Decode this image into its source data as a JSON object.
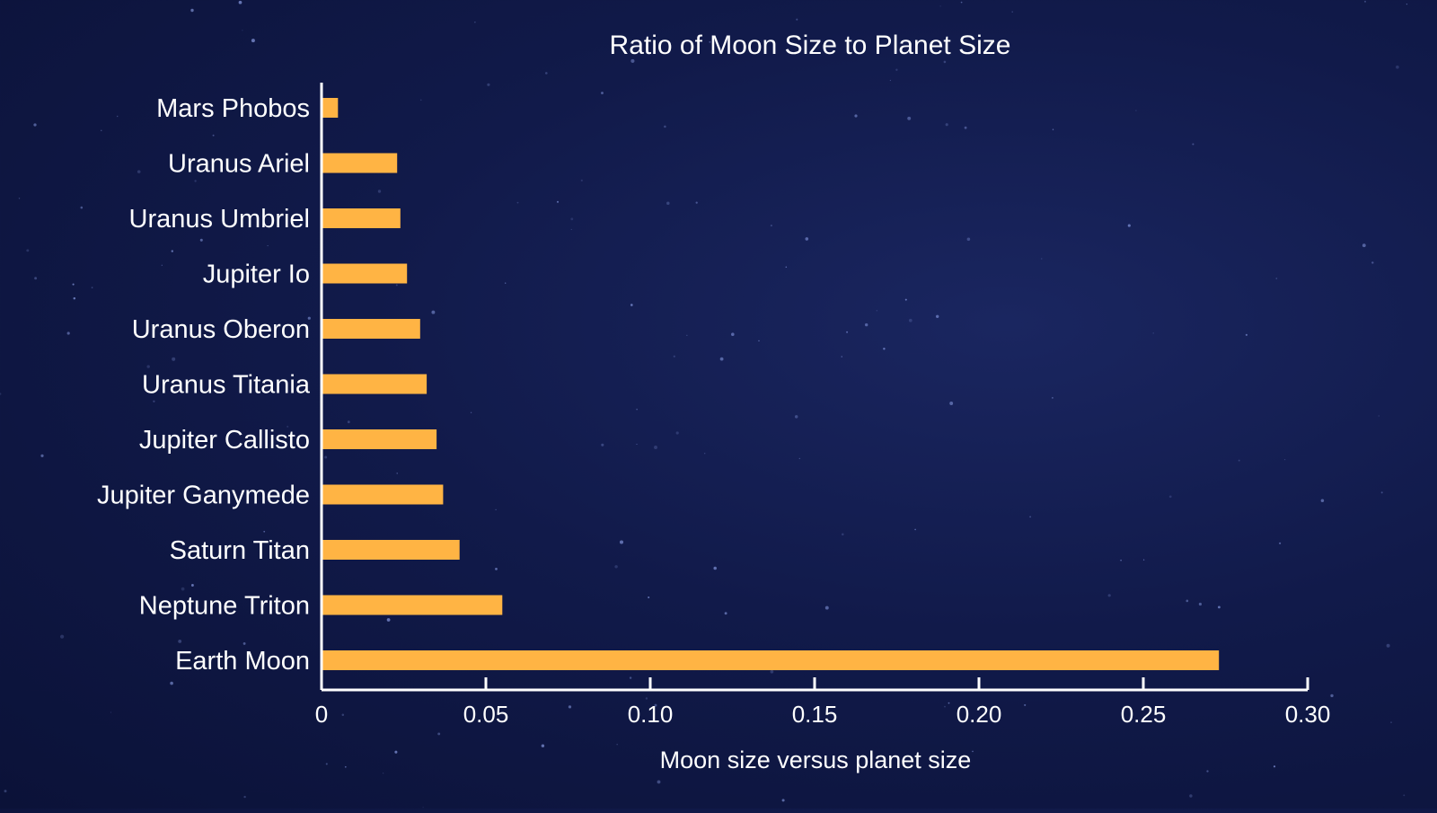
{
  "chart_data": {
    "type": "bar",
    "orientation": "horizontal",
    "title": "Ratio of Moon Size to Planet Size",
    "xlabel": "Moon size versus planet size",
    "ylabel": "",
    "categories": [
      "Mars Phobos",
      "Uranus Ariel",
      "Uranus Umbriel",
      "Jupiter Io",
      "Uranus Oberon",
      "Uranus Titania",
      "Jupiter Callisto",
      "Jupiter Ganymede",
      "Saturn Titan",
      "Neptune Triton",
      "Earth Moon"
    ],
    "values": [
      0.005,
      0.023,
      0.024,
      0.026,
      0.03,
      0.032,
      0.035,
      0.037,
      0.042,
      0.055,
      0.273
    ],
    "xlim": [
      0,
      0.3
    ],
    "xticks": [
      "0",
      "0.05",
      "0.10",
      "0.15",
      "0.20",
      "0.25",
      "0.30"
    ],
    "xtick_values": [
      0,
      0.05,
      0.1,
      0.15,
      0.2,
      0.25,
      0.3
    ],
    "grid": false,
    "bar_color": "#ffb444",
    "axis_color": "#ffffff"
  }
}
